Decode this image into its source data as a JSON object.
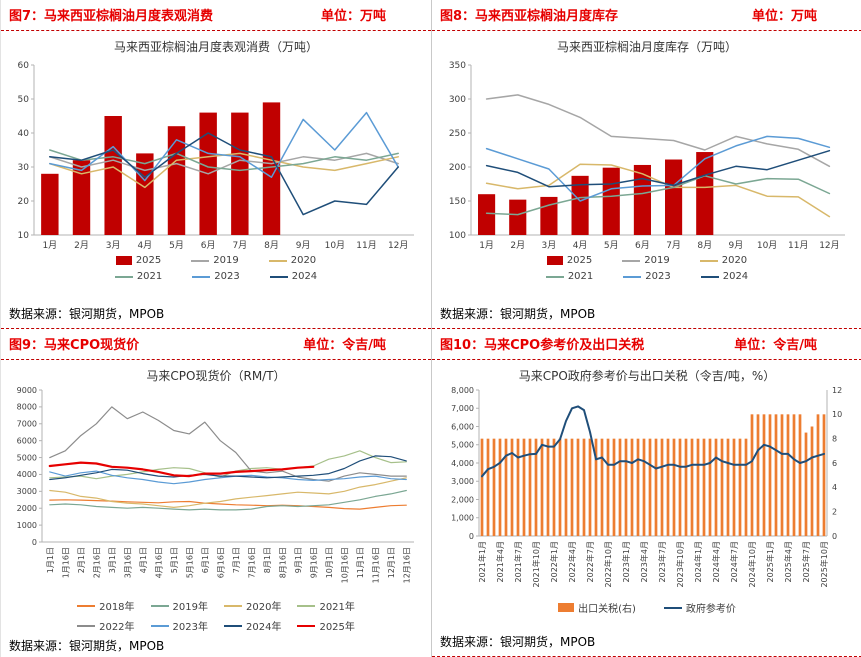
{
  "panels": [
    {
      "title": "图7：马来西亚棕榈油月度表观消费",
      "unit": "单位：万吨",
      "source": "数据来源：银河期货，MPOB"
    },
    {
      "title": "图8：马来西亚棕榈油月度库存",
      "unit": "单位：万吨",
      "source": "数据来源：银河期货，MPOB"
    },
    {
      "title": "图9：马来CPO现货价",
      "unit": "单位：令吉/吨",
      "source": "数据来源：银河期货，MPOB"
    },
    {
      "title": "图10：马来CPO参考价及出口关税",
      "unit": "单位：令吉/吨",
      "source": "数据来源：银河期货，MPOB"
    }
  ],
  "colors": {
    "accent_red": "#e60000",
    "divider_dash": "#c00000",
    "bar_red": "#c00000",
    "orange": "#ed7d31",
    "navy": "#1f4e79",
    "blue": "#5b9bd5",
    "gray": "#a6a6a6",
    "gold": "#d8b86a",
    "teal": "#7ba793"
  },
  "chart_data": [
    {
      "type": "bar",
      "title": "马来西亚棕榈油月度表观消费（万吨）",
      "categories": [
        "1月",
        "2月",
        "3月",
        "4月",
        "5月",
        "6月",
        "7月",
        "8月",
        "9月",
        "10月",
        "11月",
        "12月"
      ],
      "ylim": [
        10,
        60
      ],
      "yticks": [
        10,
        20,
        30,
        40,
        50,
        60
      ],
      "series": [
        {
          "name": "2025",
          "type": "bar",
          "color": "#c00000",
          "values": [
            28,
            32,
            45,
            34,
            42,
            46,
            46,
            49,
            null,
            null,
            null,
            null
          ]
        },
        {
          "name": "2019",
          "type": "line",
          "color": "#a6a6a6",
          "values": [
            33,
            30,
            32,
            29,
            31,
            28,
            32,
            31,
            33,
            32,
            34,
            31
          ]
        },
        {
          "name": "2020",
          "type": "line",
          "color": "#d8b86a",
          "values": [
            31,
            28,
            30,
            24,
            32,
            33,
            34,
            32,
            30,
            29,
            31,
            33
          ]
        },
        {
          "name": "2021",
          "type": "line",
          "color": "#7ba793",
          "values": [
            35,
            32,
            33,
            31,
            34,
            30,
            29,
            30,
            31,
            33,
            32,
            34
          ]
        },
        {
          "name": "2023",
          "type": "line",
          "color": "#5b9bd5",
          "values": [
            31,
            29,
            36,
            26,
            38,
            34,
            33,
            27,
            44,
            35,
            46,
            30
          ]
        },
        {
          "name": "2024",
          "type": "line",
          "color": "#1f4e79",
          "values": [
            33,
            32,
            35,
            27,
            34,
            40,
            35,
            33,
            16,
            20,
            19,
            30
          ]
        }
      ]
    },
    {
      "type": "bar",
      "title": "马来西亚棕榈油月度库存（万吨）",
      "categories": [
        "1月",
        "2月",
        "3月",
        "4月",
        "5月",
        "6月",
        "7月",
        "8月",
        "9月",
        "10月",
        "11月",
        "12月"
      ],
      "ylim": [
        100,
        350
      ],
      "yticks": [
        100,
        150,
        200,
        250,
        300,
        350
      ],
      "series": [
        {
          "name": "2025",
          "type": "bar",
          "color": "#c00000",
          "values": [
            160,
            152,
            156,
            187,
            199,
            203,
            211,
            222,
            null,
            null,
            null,
            null
          ]
        },
        {
          "name": "2019",
          "type": "line",
          "color": "#a6a6a6",
          "values": [
            300,
            306,
            292,
            273,
            245,
            242,
            239,
            225,
            245,
            234,
            226,
            201
          ]
        },
        {
          "name": "2020",
          "type": "line",
          "color": "#d8b86a",
          "values": [
            176,
            168,
            173,
            204,
            203,
            190,
            170,
            170,
            173,
            157,
            156,
            127
          ]
        },
        {
          "name": "2021",
          "type": "line",
          "color": "#7ba793",
          "values": [
            132,
            130,
            144,
            155,
            157,
            161,
            170,
            187,
            175,
            183,
            182,
            161
          ]
        },
        {
          "name": "2023",
          "type": "line",
          "color": "#5b9bd5",
          "values": [
            227,
            212,
            197,
            150,
            168,
            172,
            173,
            212,
            231,
            245,
            242,
            229
          ]
        },
        {
          "name": "2024",
          "type": "line",
          "color": "#1f4e79",
          "values": [
            202,
            192,
            171,
            174,
            175,
            183,
            173,
            188,
            201,
            196,
            210,
            224
          ]
        }
      ]
    },
    {
      "type": "line",
      "title": "马来CPO现货价（RM/T）",
      "rotate_x": true,
      "categories": [
        "1月1日",
        "1月16日",
        "2月1日",
        "2月16日",
        "3月1日",
        "3月16日",
        "4月1日",
        "4月16日",
        "5月1日",
        "5月16日",
        "6月1日",
        "6月16日",
        "7月1日",
        "7月16日",
        "8月1日",
        "8月16日",
        "9月1日",
        "9月16日",
        "10月1日",
        "10月16日",
        "11月1日",
        "11月16日",
        "12月1日",
        "12月16日"
      ],
      "ylim": [
        0,
        9000
      ],
      "yticks": [
        0,
        1000,
        2000,
        3000,
        4000,
        5000,
        6000,
        7000,
        8000,
        9000
      ],
      "series": [
        {
          "name": "2018年",
          "type": "line",
          "lw": 1.2,
          "color": "#ed7d31",
          "values": [
            2480,
            2500,
            2480,
            2450,
            2420,
            2380,
            2350,
            2320,
            2380,
            2400,
            2300,
            2250,
            2200,
            2180,
            2150,
            2180,
            2150,
            2100,
            2050,
            1980,
            1950,
            2050,
            2150,
            2180
          ]
        },
        {
          "name": "2019年",
          "type": "line",
          "lw": 1.2,
          "color": "#7ba793",
          "values": [
            2200,
            2250,
            2200,
            2100,
            2050,
            2000,
            2050,
            2000,
            1950,
            1900,
            1950,
            1900,
            1900,
            1950,
            2100,
            2150,
            2100,
            2150,
            2200,
            2350,
            2500,
            2700,
            2850,
            3050
          ]
        },
        {
          "name": "2020年",
          "type": "line",
          "lw": 1.2,
          "color": "#d8b86a",
          "values": [
            3050,
            2950,
            2700,
            2600,
            2400,
            2300,
            2250,
            2150,
            2050,
            2150,
            2300,
            2400,
            2550,
            2650,
            2750,
            2850,
            2950,
            2900,
            2850,
            3000,
            3250,
            3400,
            3600,
            3800
          ]
        },
        {
          "name": "2021年",
          "type": "line",
          "lw": 1.2,
          "color": "#a6c08a",
          "values": [
            3800,
            3850,
            3900,
            3750,
            3900,
            4000,
            4150,
            4300,
            4400,
            4350,
            4100,
            3850,
            4200,
            4350,
            4400,
            4300,
            4400,
            4500,
            4900,
            5100,
            5400,
            5000,
            4700,
            4750
          ]
        },
        {
          "name": "2022年",
          "type": "line",
          "lw": 1.2,
          "color": "#8c8c8c",
          "values": [
            5000,
            5400,
            6300,
            7000,
            8000,
            7300,
            7700,
            7200,
            6600,
            6400,
            7100,
            6000,
            5300,
            4200,
            4100,
            4200,
            3850,
            3700,
            3600,
            3900,
            4100,
            4000,
            3900,
            3900
          ]
        },
        {
          "name": "2023年",
          "type": "line",
          "lw": 1.2,
          "color": "#5b9bd5",
          "values": [
            4150,
            3900,
            4100,
            4200,
            3950,
            3800,
            3700,
            3550,
            3450,
            3550,
            3700,
            3800,
            3900,
            3950,
            3850,
            3800,
            3700,
            3650,
            3700,
            3750,
            3850,
            3900,
            3750,
            3700
          ]
        },
        {
          "name": "2024年",
          "type": "line",
          "lw": 1.2,
          "color": "#1f4e79",
          "values": [
            3700,
            3800,
            3950,
            4100,
            4300,
            4250,
            4050,
            3900,
            3850,
            3950,
            4000,
            3900,
            3900,
            3850,
            3800,
            3850,
            3900,
            3950,
            4050,
            4350,
            4800,
            5100,
            5050,
            4800
          ]
        },
        {
          "name": "2025年",
          "type": "line",
          "lw": 2.2,
          "color": "#e60000",
          "values": [
            4500,
            4600,
            4700,
            4650,
            4450,
            4400,
            4300,
            4150,
            3950,
            3900,
            4050,
            4050,
            4150,
            4200,
            4250,
            4300,
            4400,
            4450,
            null,
            null,
            null,
            null,
            null,
            null
          ]
        }
      ]
    },
    {
      "type": "dual",
      "title": "马来CPO政府参考价与出口关税（令吉/吨，%）",
      "rotate_x": true,
      "n_points": 58,
      "x_tick_every": 3,
      "x_tick_labels": [
        "2021年1月",
        "2021年4月",
        "2021年7月",
        "2021年10月",
        "2022年1月",
        "2022年4月",
        "2022年7月",
        "2022年10月",
        "2023年1月",
        "2023年4月",
        "2023年7月",
        "2023年10月",
        "2024年1月",
        "2024年4月",
        "2024年7月",
        "2024年10月",
        "2025年1月",
        "2025年4月",
        "2025年7月",
        "2025年10月"
      ],
      "left": {
        "ylim": [
          0,
          8000
        ],
        "yticks": [
          0,
          1000,
          2000,
          3000,
          4000,
          5000,
          6000,
          7000,
          8000
        ],
        "labels": [
          "0",
          "1,000",
          "2,000",
          "3,000",
          "4,000",
          "5,000",
          "6,000",
          "7,000",
          "8,000"
        ]
      },
      "right": {
        "ylim": [
          0,
          12
        ],
        "yticks": [
          0,
          2,
          4,
          6,
          8,
          10,
          12
        ]
      },
      "series": [
        {
          "name": "出口关税(右)",
          "type": "bar",
          "axis": "right",
          "width": 0.45,
          "color": "#ed7d31",
          "values": [
            8,
            8,
            8,
            8,
            8,
            8,
            8,
            8,
            8,
            8,
            8,
            8,
            8,
            8,
            8,
            8,
            8,
            8,
            8,
            8,
            8,
            8,
            8,
            8,
            8,
            8,
            8,
            8,
            8,
            8,
            8,
            8,
            8,
            8,
            8,
            8,
            8,
            8,
            8,
            8,
            8,
            8,
            8,
            8,
            8,
            10,
            10,
            10,
            10,
            10,
            10,
            10,
            10,
            10,
            8.5,
            9,
            10,
            10
          ]
        },
        {
          "name": "政府参考价",
          "type": "line",
          "axis": "left",
          "lw": 2,
          "color": "#1f4e79",
          "values": [
            3270,
            3660,
            3790,
            4010,
            4400,
            4550,
            4300,
            4400,
            4480,
            4500,
            5000,
            4900,
            4900,
            5300,
            6300,
            7000,
            7100,
            6900,
            5700,
            4200,
            4300,
            3900,
            3900,
            4100,
            4100,
            4000,
            4200,
            4100,
            3900,
            3700,
            3800,
            3900,
            3900,
            3800,
            3800,
            3900,
            3900,
            3900,
            4000,
            4300,
            4100,
            4000,
            3900,
            3900,
            3900,
            4100,
            4700,
            5000,
            4900,
            4700,
            4500,
            4500,
            4200,
            4000,
            4100,
            4300,
            4400,
            4500
          ]
        }
      ]
    }
  ]
}
